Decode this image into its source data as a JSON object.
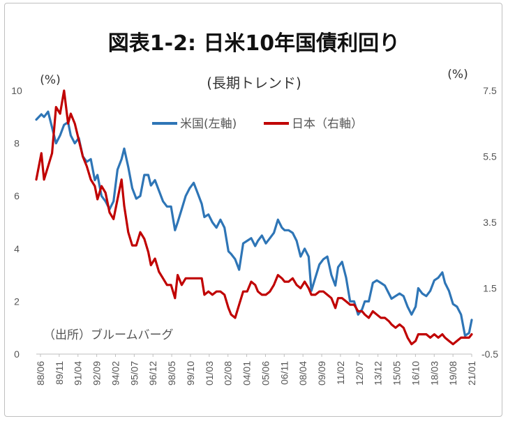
{
  "chart_data": {
    "type": "line",
    "title": "図表1-2: 日米10年国債利回り",
    "subtitle": "(長期トレンド)",
    "y_left_unit": "(%)",
    "y_right_unit": "(%)",
    "source_note": "（出所）ブルームバーグ",
    "y_left_ticks": [
      "10",
      "8",
      "6",
      "4",
      "2",
      "0"
    ],
    "y_right_ticks": [
      "7.5",
      "5.5",
      "3.5",
      "1.5",
      "-0.5"
    ],
    "ylim_left": [
      0,
      10
    ],
    "ylim_right": [
      -0.5,
      7.5
    ],
    "x_tick_labels": [
      "88/06",
      "89/11",
      "91/04",
      "92/09",
      "94/02",
      "95/07",
      "96/12",
      "98/05",
      "99/10",
      "01/03",
      "02/08",
      "04/01",
      "05/06",
      "06/11",
      "08/04",
      "09/09",
      "11/02",
      "12/07",
      "13/12",
      "15/05",
      "16/10",
      "18/03",
      "19/08",
      "21/01"
    ],
    "legend": [
      "米国(左軸)",
      "日本（右軸）"
    ],
    "legend_placement": "top-center",
    "grid": false,
    "series": [
      {
        "name": "米国(左軸)",
        "axis": "left",
        "color": "#2E75B6",
        "x": [
          1988.42,
          1988.8,
          1989.0,
          1989.3,
          1989.6,
          1989.9,
          1990.2,
          1990.5,
          1990.8,
          1991.0,
          1991.3,
          1991.6,
          1991.9,
          1992.2,
          1992.5,
          1992.8,
          1993.0,
          1993.3,
          1993.6,
          1993.9,
          1994.2,
          1994.5,
          1994.8,
          1995.0,
          1995.3,
          1995.6,
          1995.9,
          1996.2,
          1996.5,
          1996.8,
          1997.0,
          1997.3,
          1997.6,
          1997.9,
          1998.2,
          1998.5,
          1998.8,
          1999.0,
          1999.3,
          1999.6,
          1999.9,
          2000.2,
          2000.5,
          2000.8,
          2001.0,
          2001.3,
          2001.6,
          2001.9,
          2002.2,
          2002.5,
          2002.8,
          2003.0,
          2003.3,
          2003.6,
          2003.9,
          2004.2,
          2004.5,
          2004.8,
          2005.0,
          2005.3,
          2005.6,
          2005.9,
          2006.2,
          2006.5,
          2006.8,
          2007.0,
          2007.3,
          2007.6,
          2007.9,
          2008.2,
          2008.5,
          2008.8,
          2009.0,
          2009.3,
          2009.6,
          2009.9,
          2010.2,
          2010.5,
          2010.8,
          2011.0,
          2011.3,
          2011.6,
          2011.9,
          2012.2,
          2012.5,
          2012.8,
          2013.0,
          2013.3,
          2013.6,
          2013.9,
          2014.2,
          2014.5,
          2014.8,
          2015.0,
          2015.3,
          2015.6,
          2015.9,
          2016.2,
          2016.5,
          2016.8,
          2017.0,
          2017.3,
          2017.6,
          2017.9,
          2018.2,
          2018.5,
          2018.8,
          2019.0,
          2019.3,
          2019.6,
          2019.9,
          2020.2,
          2020.5,
          2020.8,
          2021.0
        ],
        "values": [
          8.9,
          9.1,
          9.0,
          9.2,
          8.6,
          8.0,
          8.3,
          8.7,
          8.8,
          8.3,
          8.0,
          8.2,
          7.5,
          7.3,
          7.4,
          6.6,
          6.8,
          6.0,
          5.8,
          5.5,
          5.8,
          7.0,
          7.4,
          7.8,
          7.1,
          6.3,
          5.9,
          6.0,
          6.8,
          6.8,
          6.4,
          6.6,
          6.2,
          5.8,
          5.6,
          5.6,
          4.7,
          5.0,
          5.5,
          6.0,
          6.3,
          6.5,
          6.1,
          5.7,
          5.2,
          5.3,
          5.0,
          4.8,
          5.1,
          4.8,
          3.9,
          3.8,
          3.6,
          3.2,
          4.2,
          4.3,
          4.4,
          4.1,
          4.3,
          4.5,
          4.2,
          4.4,
          4.6,
          5.1,
          4.8,
          4.7,
          4.7,
          4.6,
          4.3,
          3.7,
          4.0,
          3.7,
          2.4,
          2.9,
          3.4,
          3.6,
          3.7,
          3.0,
          2.6,
          3.3,
          3.5,
          2.9,
          2.0,
          2.0,
          1.5,
          1.7,
          2.0,
          2.0,
          2.7,
          2.8,
          2.7,
          2.6,
          2.3,
          2.1,
          2.2,
          2.3,
          2.2,
          1.8,
          1.5,
          1.8,
          2.5,
          2.3,
          2.2,
          2.4,
          2.8,
          2.9,
          3.1,
          2.7,
          2.4,
          1.9,
          1.8,
          1.5,
          0.7,
          0.8,
          1.3
        ]
      },
      {
        "name": "日本（右軸）",
        "axis": "right",
        "color": "#C00000",
        "x": [
          1988.42,
          1988.8,
          1989.0,
          1989.3,
          1989.6,
          1989.9,
          1990.2,
          1990.5,
          1990.8,
          1991.0,
          1991.3,
          1991.6,
          1991.9,
          1992.2,
          1992.5,
          1992.8,
          1993.0,
          1993.3,
          1993.6,
          1993.9,
          1994.2,
          1994.5,
          1994.8,
          1995.0,
          1995.3,
          1995.6,
          1995.9,
          1996.2,
          1996.5,
          1996.8,
          1997.0,
          1997.3,
          1997.6,
          1997.9,
          1998.2,
          1998.5,
          1998.8,
          1999.0,
          1999.3,
          1999.6,
          1999.9,
          2000.2,
          2000.5,
          2000.8,
          2001.0,
          2001.3,
          2001.6,
          2001.9,
          2002.2,
          2002.5,
          2002.8,
          2003.0,
          2003.3,
          2003.6,
          2003.9,
          2004.2,
          2004.5,
          2004.8,
          2005.0,
          2005.3,
          2005.6,
          2005.9,
          2006.2,
          2006.5,
          2006.8,
          2007.0,
          2007.3,
          2007.6,
          2007.9,
          2008.2,
          2008.5,
          2008.8,
          2009.0,
          2009.3,
          2009.6,
          2009.9,
          2010.2,
          2010.5,
          2010.8,
          2011.0,
          2011.3,
          2011.6,
          2011.9,
          2012.2,
          2012.5,
          2012.8,
          2013.0,
          2013.3,
          2013.6,
          2013.9,
          2014.2,
          2014.5,
          2014.8,
          2015.0,
          2015.3,
          2015.6,
          2015.9,
          2016.2,
          2016.5,
          2016.8,
          2017.0,
          2017.3,
          2017.6,
          2017.9,
          2018.2,
          2018.5,
          2018.8,
          2019.0,
          2019.3,
          2019.6,
          2019.9,
          2020.2,
          2020.5,
          2020.8,
          2021.0
        ],
        "values": [
          4.8,
          5.6,
          4.8,
          5.2,
          5.6,
          7.0,
          6.8,
          7.5,
          6.5,
          6.8,
          6.5,
          6.0,
          5.5,
          5.2,
          4.8,
          4.6,
          4.2,
          4.6,
          4.4,
          3.8,
          3.6,
          4.2,
          4.8,
          4.0,
          3.2,
          2.8,
          2.8,
          3.2,
          3.0,
          2.6,
          2.2,
          2.4,
          2.0,
          1.8,
          1.6,
          1.6,
          1.2,
          1.9,
          1.6,
          1.8,
          1.8,
          1.8,
          1.8,
          1.8,
          1.3,
          1.4,
          1.3,
          1.4,
          1.4,
          1.3,
          0.9,
          0.7,
          0.6,
          1.0,
          1.4,
          1.4,
          1.7,
          1.6,
          1.4,
          1.3,
          1.3,
          1.4,
          1.6,
          1.9,
          1.8,
          1.7,
          1.7,
          1.8,
          1.6,
          1.5,
          1.7,
          1.5,
          1.3,
          1.3,
          1.4,
          1.4,
          1.3,
          1.2,
          0.9,
          1.2,
          1.2,
          1.1,
          1.0,
          1.0,
          0.8,
          0.8,
          0.7,
          0.6,
          0.8,
          0.7,
          0.6,
          0.6,
          0.5,
          0.4,
          0.3,
          0.4,
          0.3,
          0.0,
          -0.2,
          -0.1,
          0.1,
          0.1,
          0.1,
          0.0,
          0.1,
          0.0,
          0.1,
          0.0,
          -0.1,
          -0.2,
          -0.1,
          0.0,
          0.0,
          0.0,
          0.1
        ]
      }
    ]
  }
}
